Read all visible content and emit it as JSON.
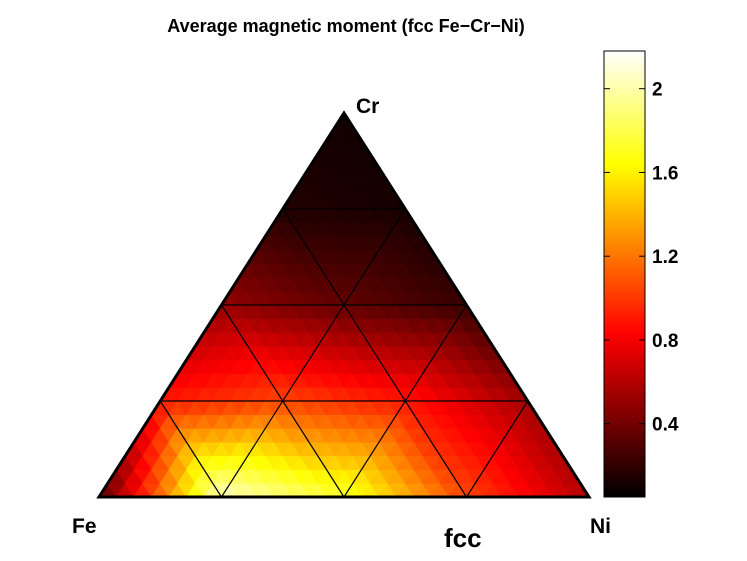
{
  "chart_data": {
    "type": "heatmap",
    "title": "Average magnetic moment (fcc Fe−Cr−Ni)",
    "annotation": "fcc",
    "vertices": {
      "bottom_left": "Fe",
      "bottom_right": "Ni",
      "top": "Cr"
    },
    "grid_divisions": 4,
    "colormap": "hot",
    "colorbar": {
      "range": [
        0.05,
        2.18
      ],
      "ticks": [
        0.4,
        0.8,
        1.2,
        1.6,
        2
      ],
      "tick_labels": [
        "0.4",
        "0.8",
        "1.2",
        "1.6",
        "2"
      ]
    },
    "grid_nodes": [
      {
        "Cr": 0.0,
        "Ni": 0.0,
        "Fe": 1.0,
        "value": 0.3
      },
      {
        "Cr": 0.0,
        "Ni": 0.25,
        "Fe": 0.75,
        "value": 2.05
      },
      {
        "Cr": 0.0,
        "Ni": 0.5,
        "Fe": 0.5,
        "value": 1.75
      },
      {
        "Cr": 0.0,
        "Ni": 0.75,
        "Fe": 0.25,
        "value": 1.05
      },
      {
        "Cr": 0.0,
        "Ni": 1.0,
        "Fe": 0.0,
        "value": 0.6
      },
      {
        "Cr": 0.25,
        "Ni": 0.0,
        "Fe": 0.75,
        "value": 0.9
      },
      {
        "Cr": 0.25,
        "Ni": 0.25,
        "Fe": 0.5,
        "value": 1.05
      },
      {
        "Cr": 0.25,
        "Ni": 0.5,
        "Fe": 0.25,
        "value": 0.9
      },
      {
        "Cr": 0.25,
        "Ni": 0.75,
        "Fe": 0.0,
        "value": 0.55
      },
      {
        "Cr": 0.5,
        "Ni": 0.0,
        "Fe": 0.5,
        "value": 0.5
      },
      {
        "Cr": 0.5,
        "Ni": 0.25,
        "Fe": 0.25,
        "value": 0.35
      },
      {
        "Cr": 0.5,
        "Ni": 0.5,
        "Fe": 0.0,
        "value": 0.22
      },
      {
        "Cr": 0.75,
        "Ni": 0.0,
        "Fe": 0.25,
        "value": 0.15
      },
      {
        "Cr": 0.75,
        "Ni": 0.25,
        "Fe": 0.0,
        "value": 0.12
      },
      {
        "Cr": 1.0,
        "Ni": 0.0,
        "Fe": 0.0,
        "value": 0.1
      }
    ]
  }
}
